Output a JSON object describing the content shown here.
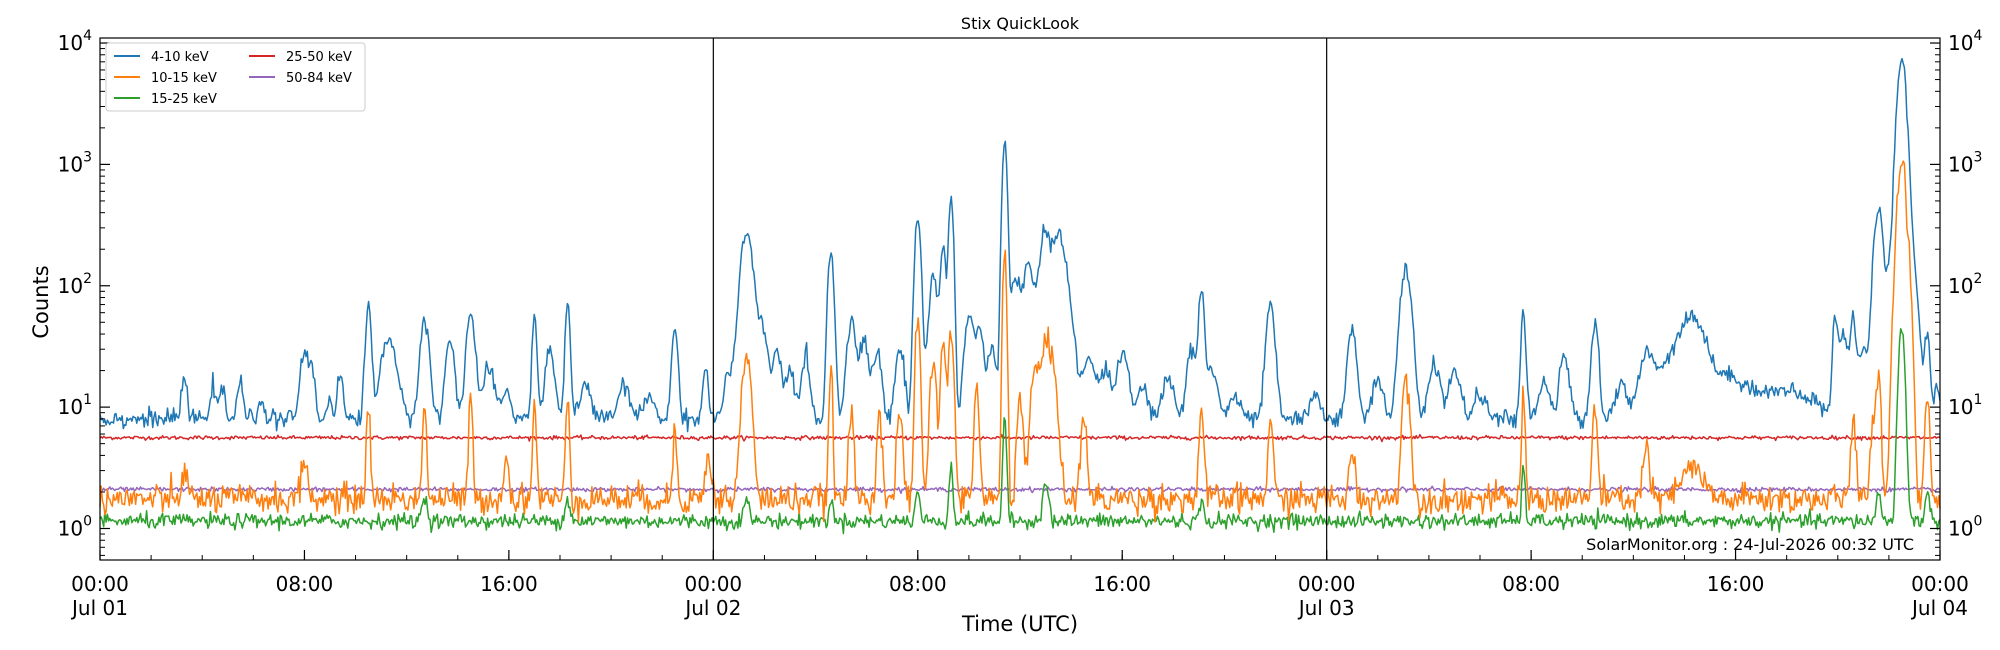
{
  "chart_data": {
    "type": "line",
    "title": "Stix QuickLook",
    "xlabel": "Time (UTC)",
    "ylabel": "Counts",
    "yscale": "log",
    "ylim": [
      0.55,
      11000
    ],
    "xlim_hours": [
      0,
      72
    ],
    "grid": false,
    "legend_position": "top-left",
    "x_ticks": [
      {
        "hour": 0,
        "label": "00:00",
        "date": "Jul 01"
      },
      {
        "hour": 8,
        "label": "08:00",
        "date": ""
      },
      {
        "hour": 16,
        "label": "16:00",
        "date": ""
      },
      {
        "hour": 24,
        "label": "00:00",
        "date": "Jul 02"
      },
      {
        "hour": 32,
        "label": "08:00",
        "date": ""
      },
      {
        "hour": 40,
        "label": "16:00",
        "date": ""
      },
      {
        "hour": 48,
        "label": "00:00",
        "date": "Jul 03"
      },
      {
        "hour": 56,
        "label": "08:00",
        "date": ""
      },
      {
        "hour": 64,
        "label": "16:00",
        "date": ""
      },
      {
        "hour": 72,
        "label": "00:00",
        "date": "Jul 04"
      }
    ],
    "y_ticks": [
      {
        "value": 1,
        "base": "10",
        "exp": "0"
      },
      {
        "value": 10,
        "base": "10",
        "exp": "1"
      },
      {
        "value": 100,
        "base": "10",
        "exp": "2"
      },
      {
        "value": 1000,
        "base": "10",
        "exp": "3"
      },
      {
        "value": 10000,
        "base": "10",
        "exp": "4"
      }
    ],
    "day_boundaries_hours": [
      24,
      48
    ],
    "series": [
      {
        "name": "4-10 keV",
        "color": "#1f77b4",
        "baseline": 8,
        "noise": 0.08,
        "peaks": [
          [
            3.3,
            17,
            0.1
          ],
          [
            4.4,
            15,
            0.1
          ],
          [
            4.8,
            14,
            0.1
          ],
          [
            5.5,
            16,
            0.1
          ],
          [
            6.3,
            12,
            0.1
          ],
          [
            8.0,
            27,
            0.15
          ],
          [
            8.3,
            20,
            0.1
          ],
          [
            9.0,
            12,
            0.1
          ],
          [
            9.4,
            18,
            0.1
          ],
          [
            10.5,
            65,
            0.1
          ],
          [
            11.3,
            38,
            0.25
          ],
          [
            12.7,
            53,
            0.15
          ],
          [
            13.7,
            35,
            0.15
          ],
          [
            14.5,
            57,
            0.15
          ],
          [
            15.2,
            20,
            0.2
          ],
          [
            15.9,
            14,
            0.15
          ],
          [
            17.0,
            57,
            0.08
          ],
          [
            17.6,
            30,
            0.15
          ],
          [
            18.3,
            75,
            0.08
          ],
          [
            19.0,
            15,
            0.2
          ],
          [
            20.5,
            15,
            0.2
          ],
          [
            21.5,
            12,
            0.2
          ],
          [
            22.5,
            45,
            0.1
          ],
          [
            23.7,
            20,
            0.1
          ],
          [
            24.6,
            20,
            0.15
          ],
          [
            25.3,
            275,
            0.2
          ],
          [
            25.9,
            45,
            0.2
          ],
          [
            26.5,
            28,
            0.15
          ],
          [
            27.0,
            20,
            0.15
          ],
          [
            27.6,
            25,
            0.15
          ],
          [
            28.6,
            190,
            0.1
          ],
          [
            29.4,
            55,
            0.15
          ],
          [
            29.9,
            35,
            0.15
          ],
          [
            30.4,
            28,
            0.15
          ],
          [
            31.3,
            30,
            0.15
          ],
          [
            32.0,
            375,
            0.1
          ],
          [
            32.6,
            120,
            0.15
          ],
          [
            33.0,
            200,
            0.1
          ],
          [
            33.3,
            530,
            0.08
          ],
          [
            34.0,
            55,
            0.15
          ],
          [
            34.4,
            45,
            0.15
          ],
          [
            34.9,
            30,
            0.15
          ],
          [
            35.4,
            1450,
            0.08
          ],
          [
            35.8,
            110,
            0.15
          ],
          [
            36.3,
            150,
            0.2
          ],
          [
            36.8,
            80,
            0.15
          ],
          [
            37.0,
            220,
            0.15
          ],
          [
            37.5,
            280,
            0.25
          ],
          [
            38.0,
            30,
            0.2
          ],
          [
            38.7,
            25,
            0.2
          ],
          [
            39.3,
            20,
            0.2
          ],
          [
            40.0,
            28,
            0.2
          ],
          [
            40.8,
            14,
            0.2
          ],
          [
            41.8,
            17,
            0.2
          ],
          [
            42.7,
            30,
            0.15
          ],
          [
            43.1,
            90,
            0.1
          ],
          [
            43.5,
            20,
            0.2
          ],
          [
            44.4,
            12,
            0.2
          ],
          [
            45.8,
            65,
            0.15
          ],
          [
            47.6,
            12,
            0.2
          ],
          [
            49.0,
            43,
            0.15
          ],
          [
            50.0,
            17,
            0.2
          ],
          [
            51.1,
            135,
            0.18
          ],
          [
            52.2,
            22,
            0.2
          ],
          [
            53.0,
            20,
            0.2
          ],
          [
            54.0,
            13,
            0.2
          ],
          [
            55.7,
            60,
            0.08
          ],
          [
            56.5,
            15,
            0.2
          ],
          [
            57.3,
            28,
            0.15
          ],
          [
            58.5,
            50,
            0.12
          ],
          [
            59.5,
            15,
            0.2
          ],
          [
            60.5,
            22,
            0.25
          ],
          [
            61.0,
            15,
            0.5
          ],
          [
            61.7,
            17,
            0.6
          ],
          [
            62.3,
            50,
            0.45
          ],
          [
            63.3,
            14,
            0.6
          ],
          [
            64.0,
            14,
            0.5
          ],
          [
            65.0,
            12,
            0.5
          ],
          [
            66.0,
            13,
            0.5
          ],
          [
            67.0,
            11,
            0.4
          ],
          [
            67.9,
            57,
            0.08
          ],
          [
            68.2,
            40,
            0.15
          ],
          [
            68.6,
            60,
            0.1
          ],
          [
            69.0,
            30,
            0.15
          ],
          [
            69.4,
            30,
            0.15
          ],
          [
            69.6,
            410,
            0.15
          ],
          [
            70.0,
            130,
            0.1
          ],
          [
            70.4,
            140,
            0.15
          ],
          [
            70.5,
            7200,
            0.15
          ],
          [
            70.9,
            80,
            0.15
          ],
          [
            71.0,
            85,
            0.15
          ],
          [
            71.5,
            40,
            0.1
          ],
          [
            71.9,
            14,
            0.1
          ]
        ]
      },
      {
        "name": "10-15 keV",
        "color": "#ff7f0e",
        "baseline": 1.75,
        "noise": 0.14,
        "peaks": [
          [
            3.3,
            3,
            0.1
          ],
          [
            8.0,
            3.8,
            0.1
          ],
          [
            10.5,
            11,
            0.06
          ],
          [
            12.7,
            12,
            0.06
          ],
          [
            14.5,
            12,
            0.06
          ],
          [
            15.9,
            3.5,
            0.1
          ],
          [
            17.0,
            11,
            0.06
          ],
          [
            18.3,
            12,
            0.06
          ],
          [
            22.5,
            7,
            0.06
          ],
          [
            23.8,
            4,
            0.1
          ],
          [
            25.3,
            26,
            0.15
          ],
          [
            28.6,
            18,
            0.06
          ],
          [
            29.4,
            9,
            0.08
          ],
          [
            30.5,
            10,
            0.08
          ],
          [
            31.3,
            8,
            0.1
          ],
          [
            32.0,
            47,
            0.08
          ],
          [
            32.6,
            25,
            0.1
          ],
          [
            33.0,
            38,
            0.08
          ],
          [
            33.3,
            48,
            0.08
          ],
          [
            34.3,
            15,
            0.08
          ],
          [
            35.4,
            180,
            0.06
          ],
          [
            36.0,
            12,
            0.1
          ],
          [
            36.6,
            20,
            0.15
          ],
          [
            37.0,
            30,
            0.15
          ],
          [
            37.3,
            20,
            0.15
          ],
          [
            38.5,
            8,
            0.1
          ],
          [
            43.1,
            9,
            0.08
          ],
          [
            45.8,
            8,
            0.08
          ],
          [
            49.0,
            4,
            0.1
          ],
          [
            51.1,
            18,
            0.12
          ],
          [
            55.7,
            11,
            0.06
          ],
          [
            58.5,
            10,
            0.08
          ],
          [
            60.5,
            5,
            0.1
          ],
          [
            62.3,
            3.2,
            0.35
          ],
          [
            68.6,
            8,
            0.08
          ],
          [
            69.4,
            9,
            0.08
          ],
          [
            69.6,
            17,
            0.08
          ],
          [
            70.5,
            1000,
            0.15
          ],
          [
            70.8,
            60,
            0.1
          ],
          [
            71.5,
            12,
            0.08
          ]
        ]
      },
      {
        "name": "15-25 keV",
        "color": "#2ca02c",
        "baseline": 1.15,
        "noise": 0.07,
        "peaks": [
          [
            12.7,
            1.8,
            0.1
          ],
          [
            18.3,
            1.7,
            0.1
          ],
          [
            25.3,
            1.7,
            0.1
          ],
          [
            28.6,
            1.8,
            0.06
          ],
          [
            32.0,
            2.0,
            0.08
          ],
          [
            33.3,
            3.5,
            0.06
          ],
          [
            35.4,
            8,
            0.06
          ],
          [
            37.0,
            2.5,
            0.1
          ],
          [
            43.1,
            1.6,
            0.08
          ],
          [
            55.7,
            3,
            0.06
          ],
          [
            69.6,
            2,
            0.08
          ],
          [
            70.5,
            45,
            0.1
          ],
          [
            71.5,
            2,
            0.08
          ]
        ]
      },
      {
        "name": "25-50 keV",
        "color": "#d62728",
        "baseline": 5.6,
        "noise": 0.018,
        "peaks": []
      },
      {
        "name": "50-84 keV",
        "color": "#9467bd",
        "baseline": 2.1,
        "noise": 0.02,
        "peaks": []
      }
    ],
    "annotation": "SolarMonitor.org : 24-Jul-2026 00:32 UTC"
  }
}
